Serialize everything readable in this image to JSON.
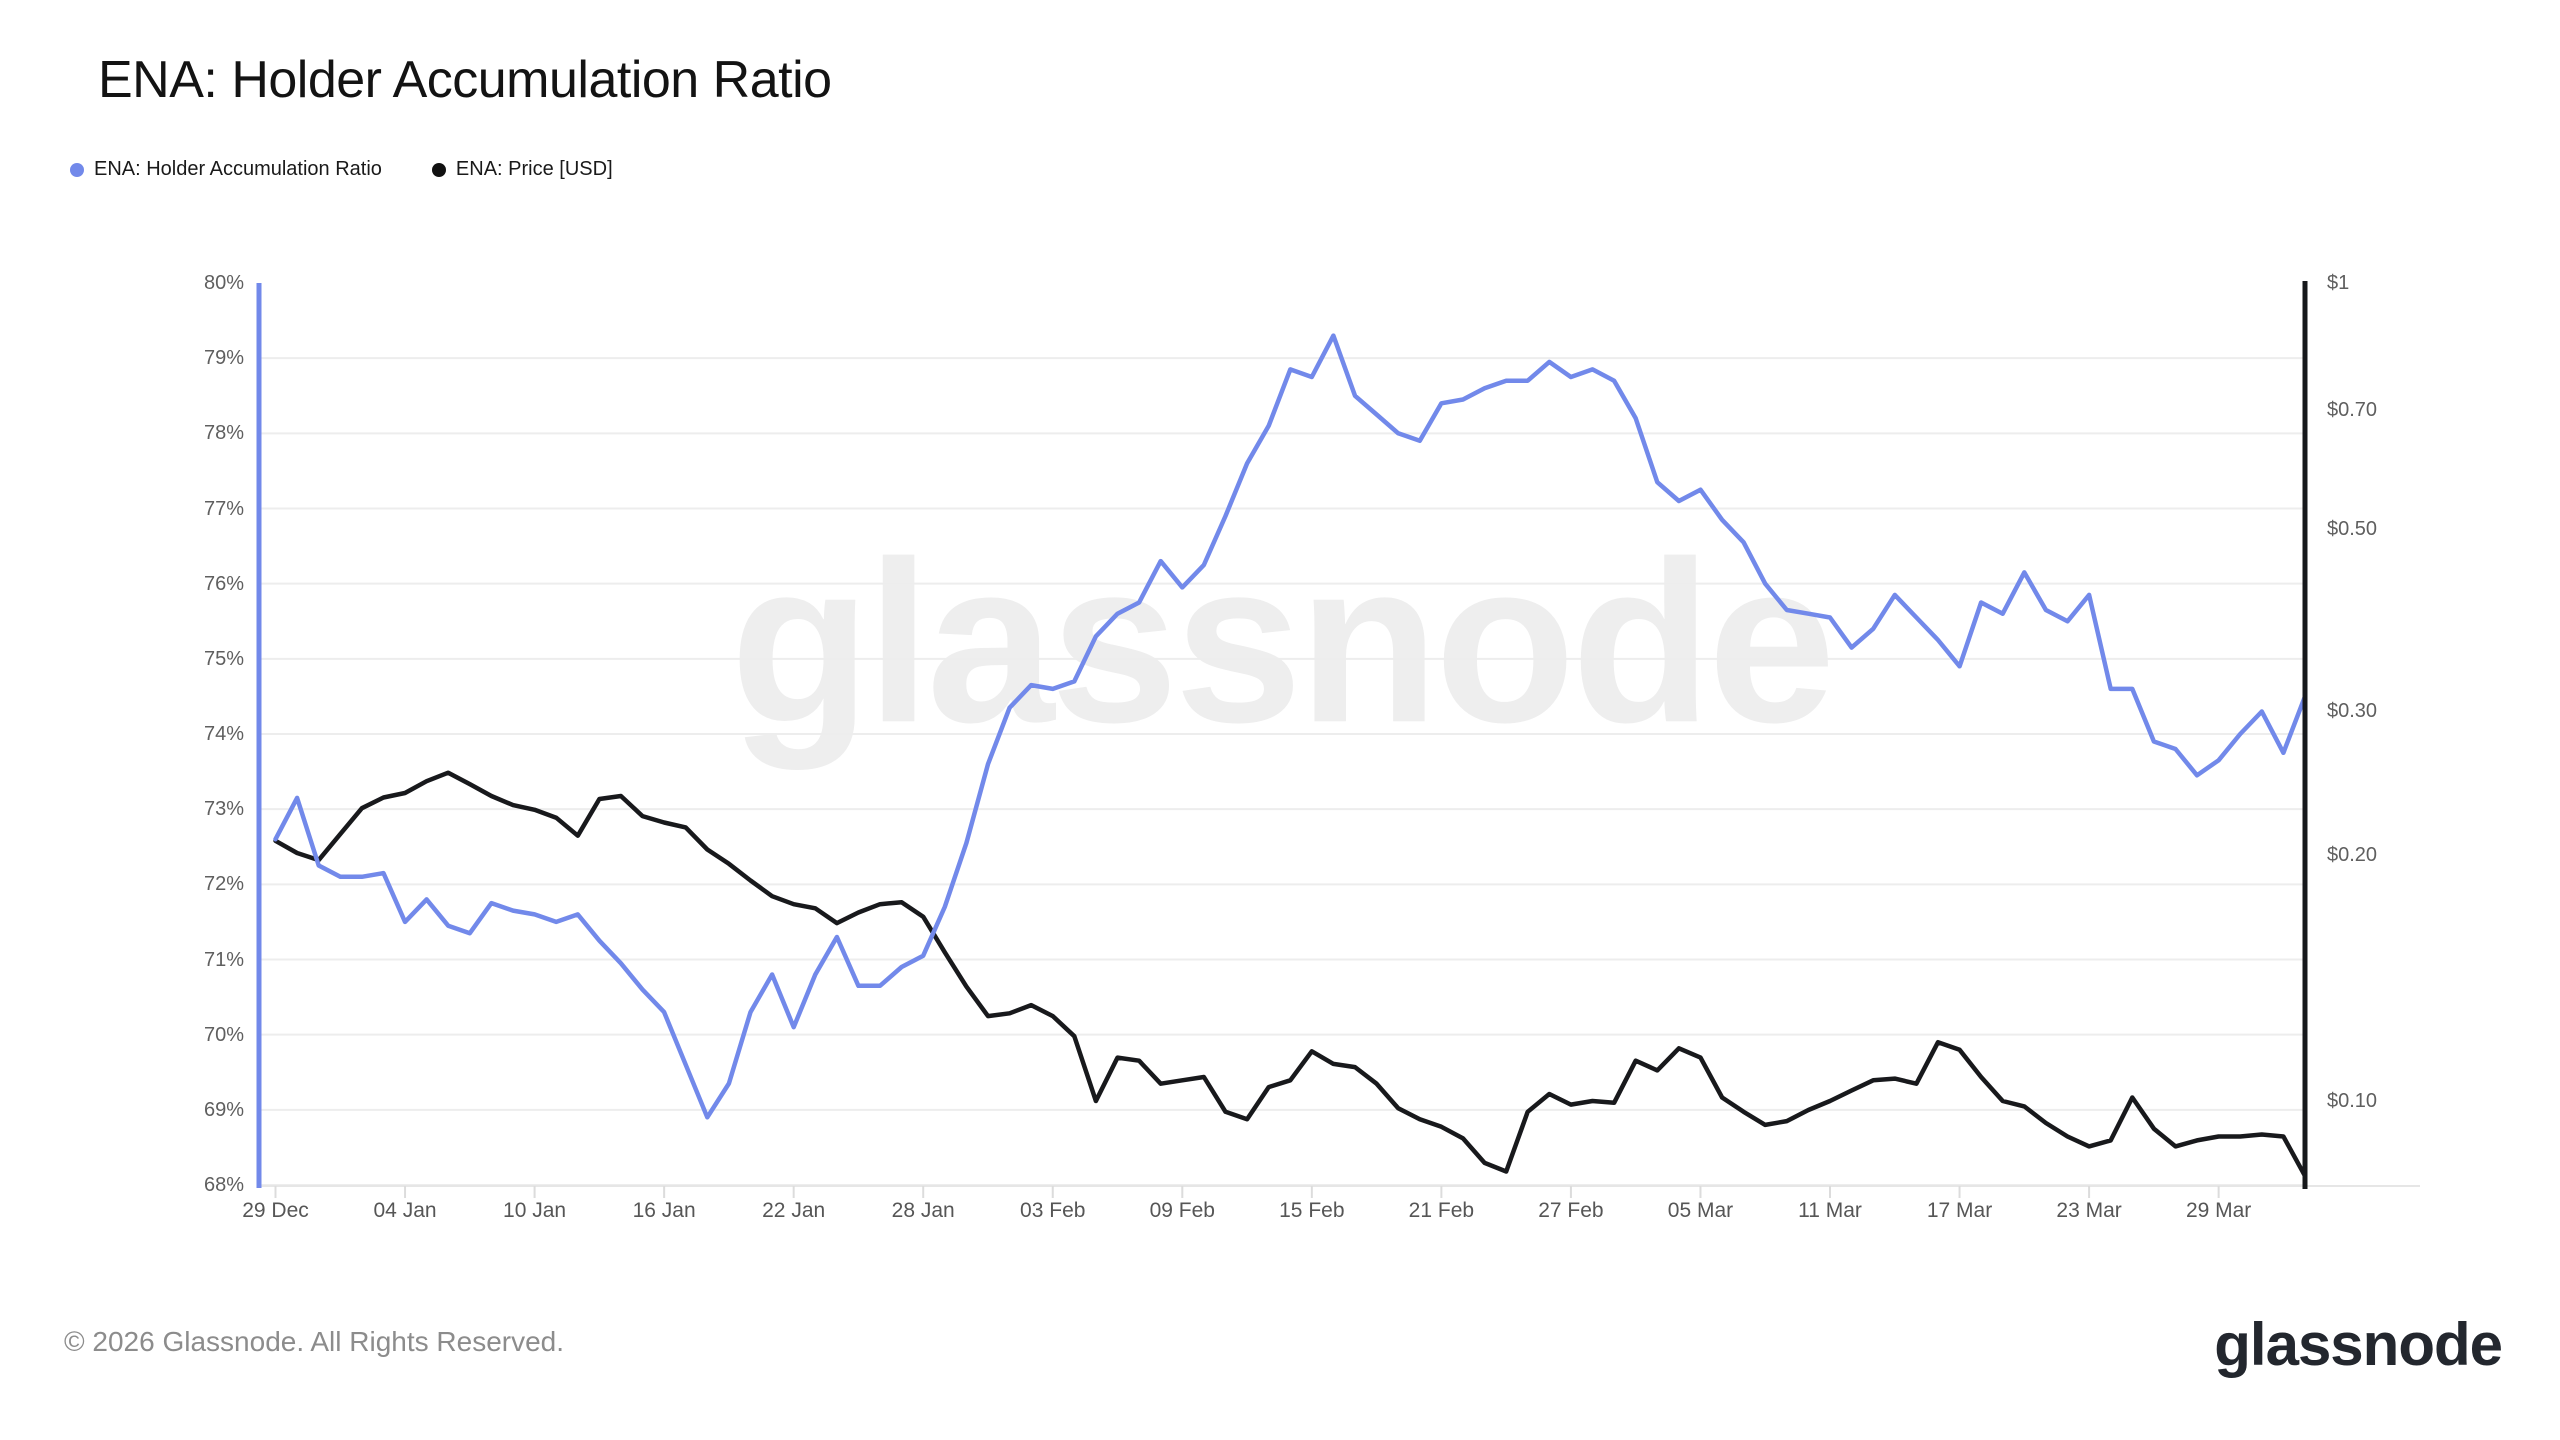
{
  "header": {
    "title": "ENA: Holder Accumulation Ratio"
  },
  "legend": [
    {
      "label": "ENA: Holder Accumulation Ratio",
      "color": "#7289EA"
    },
    {
      "label": "ENA: Price [USD]",
      "color": "#111111"
    }
  ],
  "watermark": "glassnode",
  "footer": {
    "copyright": "© 2026 Glassnode. All Rights Reserved.",
    "logo": "glassnode"
  },
  "chart_data": {
    "type": "line",
    "title": "ENA: Holder Accumulation Ratio",
    "grid": "horizontal",
    "legend_position": "top-left",
    "x_tick_labels": [
      "29 Dec",
      "04 Jan",
      "10 Jan",
      "16 Jan",
      "22 Jan",
      "28 Jan",
      "03 Feb",
      "09 Feb",
      "15 Feb",
      "21 Feb",
      "27 Feb",
      "05 Mar",
      "11 Mar",
      "17 Mar",
      "23 Mar",
      "29 Mar"
    ],
    "x_tick_interval_days": 6,
    "left_axis": {
      "min": 68,
      "max": 80,
      "tick_step": 1,
      "unit": "%",
      "tick_labels": [
        "80%",
        "79%",
        "78%",
        "77%",
        "76%",
        "75%",
        "74%",
        "73%",
        "72%",
        "71%",
        "70%",
        "69%",
        "68%"
      ]
    },
    "right_axis": {
      "scale": "log",
      "unit": "USD",
      "tick_labels": [
        "$1",
        "$0.70",
        "$0.50",
        "$0.30",
        "$0.20",
        "$0.10"
      ],
      "tick_values": [
        1,
        0.7,
        0.5,
        0.3,
        0.2,
        0.1
      ]
    },
    "dates": [
      "2025-12-29",
      "2025-12-30",
      "2025-12-31",
      "2026-01-01",
      "2026-01-02",
      "2026-01-03",
      "2026-01-04",
      "2026-01-05",
      "2026-01-06",
      "2026-01-07",
      "2026-01-08",
      "2026-01-09",
      "2026-01-10",
      "2026-01-11",
      "2026-01-12",
      "2026-01-13",
      "2026-01-14",
      "2026-01-15",
      "2026-01-16",
      "2026-01-17",
      "2026-01-18",
      "2026-01-19",
      "2026-01-20",
      "2026-01-21",
      "2026-01-22",
      "2026-01-23",
      "2026-01-24",
      "2026-01-25",
      "2026-01-26",
      "2026-01-27",
      "2026-01-28",
      "2026-01-29",
      "2026-01-30",
      "2026-01-31",
      "2026-02-01",
      "2026-02-02",
      "2026-02-03",
      "2026-02-04",
      "2026-02-05",
      "2026-02-06",
      "2026-02-07",
      "2026-02-08",
      "2026-02-09",
      "2026-02-10",
      "2026-02-11",
      "2026-02-12",
      "2026-02-13",
      "2026-02-14",
      "2026-02-15",
      "2026-02-16",
      "2026-02-17",
      "2026-02-18",
      "2026-02-19",
      "2026-02-20",
      "2026-02-21",
      "2026-02-22",
      "2026-02-23",
      "2026-02-24",
      "2026-02-25",
      "2026-02-26",
      "2026-02-27",
      "2026-02-28",
      "2026-03-01",
      "2026-03-02",
      "2026-03-03",
      "2026-03-04",
      "2026-03-05",
      "2026-03-06",
      "2026-03-07",
      "2026-03-08",
      "2026-03-09",
      "2026-03-10",
      "2026-03-11",
      "2026-03-12",
      "2026-03-13",
      "2026-03-14",
      "2026-03-15",
      "2026-03-16",
      "2026-03-17",
      "2026-03-18",
      "2026-03-19",
      "2026-03-20",
      "2026-03-21",
      "2026-03-22",
      "2026-03-23",
      "2026-03-24",
      "2026-03-25",
      "2026-03-26",
      "2026-03-27",
      "2026-03-28",
      "2026-03-29",
      "2026-03-30",
      "2026-03-31",
      "2026-04-01",
      "2026-04-02"
    ],
    "series": [
      {
        "name": "ENA: Holder Accumulation Ratio",
        "axis": "left",
        "unit": "%",
        "color": "#7289EA",
        "values": [
          72.6,
          73.15,
          72.25,
          72.1,
          72.1,
          72.15,
          71.5,
          71.8,
          71.45,
          71.35,
          71.75,
          71.65,
          71.6,
          71.5,
          71.6,
          71.25,
          70.95,
          70.6,
          70.3,
          69.6,
          68.9,
          69.35,
          70.3,
          70.8,
          70.1,
          70.8,
          71.3,
          70.65,
          70.65,
          70.9,
          71.05,
          71.7,
          72.55,
          73.6,
          74.35,
          74.65,
          74.6,
          74.7,
          75.3,
          75.6,
          75.75,
          76.3,
          75.95,
          76.25,
          76.9,
          77.6,
          78.1,
          78.85,
          78.75,
          79.3,
          78.5,
          78.25,
          78.0,
          77.9,
          78.4,
          78.45,
          78.6,
          78.7,
          78.7,
          78.95,
          78.75,
          78.85,
          78.7,
          78.2,
          77.35,
          77.1,
          77.25,
          76.85,
          76.55,
          76.0,
          75.65,
          75.6,
          75.55,
          75.15,
          75.4,
          75.85,
          75.55,
          75.25,
          74.9,
          75.75,
          75.6,
          76.15,
          75.65,
          75.5,
          75.85,
          74.6,
          74.6,
          73.9,
          73.8,
          73.45,
          73.65,
          74.0,
          74.3,
          73.75,
          74.5
        ]
      },
      {
        "name": "ENA: Price [USD]",
        "axis": "right",
        "unit": "USD",
        "color": "#18191c",
        "values": [
          0.208,
          0.201,
          0.197,
          0.212,
          0.228,
          0.235,
          0.238,
          0.246,
          0.252,
          0.244,
          0.236,
          0.23,
          0.227,
          0.222,
          0.211,
          0.234,
          0.236,
          0.223,
          0.219,
          0.216,
          0.203,
          0.195,
          0.186,
          0.178,
          0.174,
          0.172,
          0.165,
          0.17,
          0.174,
          0.175,
          0.168,
          0.152,
          0.138,
          0.127,
          0.128,
          0.131,
          0.127,
          0.12,
          0.1,
          0.113,
          0.112,
          0.105,
          0.106,
          0.107,
          0.097,
          0.095,
          0.104,
          0.106,
          0.115,
          0.111,
          0.11,
          0.105,
          0.098,
          0.095,
          0.093,
          0.09,
          0.084,
          0.082,
          0.097,
          0.102,
          0.099,
          0.1,
          0.0995,
          0.112,
          0.109,
          0.116,
          0.113,
          0.101,
          0.097,
          0.0935,
          0.0945,
          0.0975,
          0.1,
          0.103,
          0.106,
          0.1065,
          0.105,
          0.118,
          0.1155,
          0.107,
          0.1,
          0.0985,
          0.094,
          0.0905,
          0.088,
          0.0895,
          0.101,
          0.0925,
          0.088,
          0.0895,
          0.0905,
          0.0905,
          0.091,
          0.0905,
          0.081
        ]
      }
    ]
  }
}
